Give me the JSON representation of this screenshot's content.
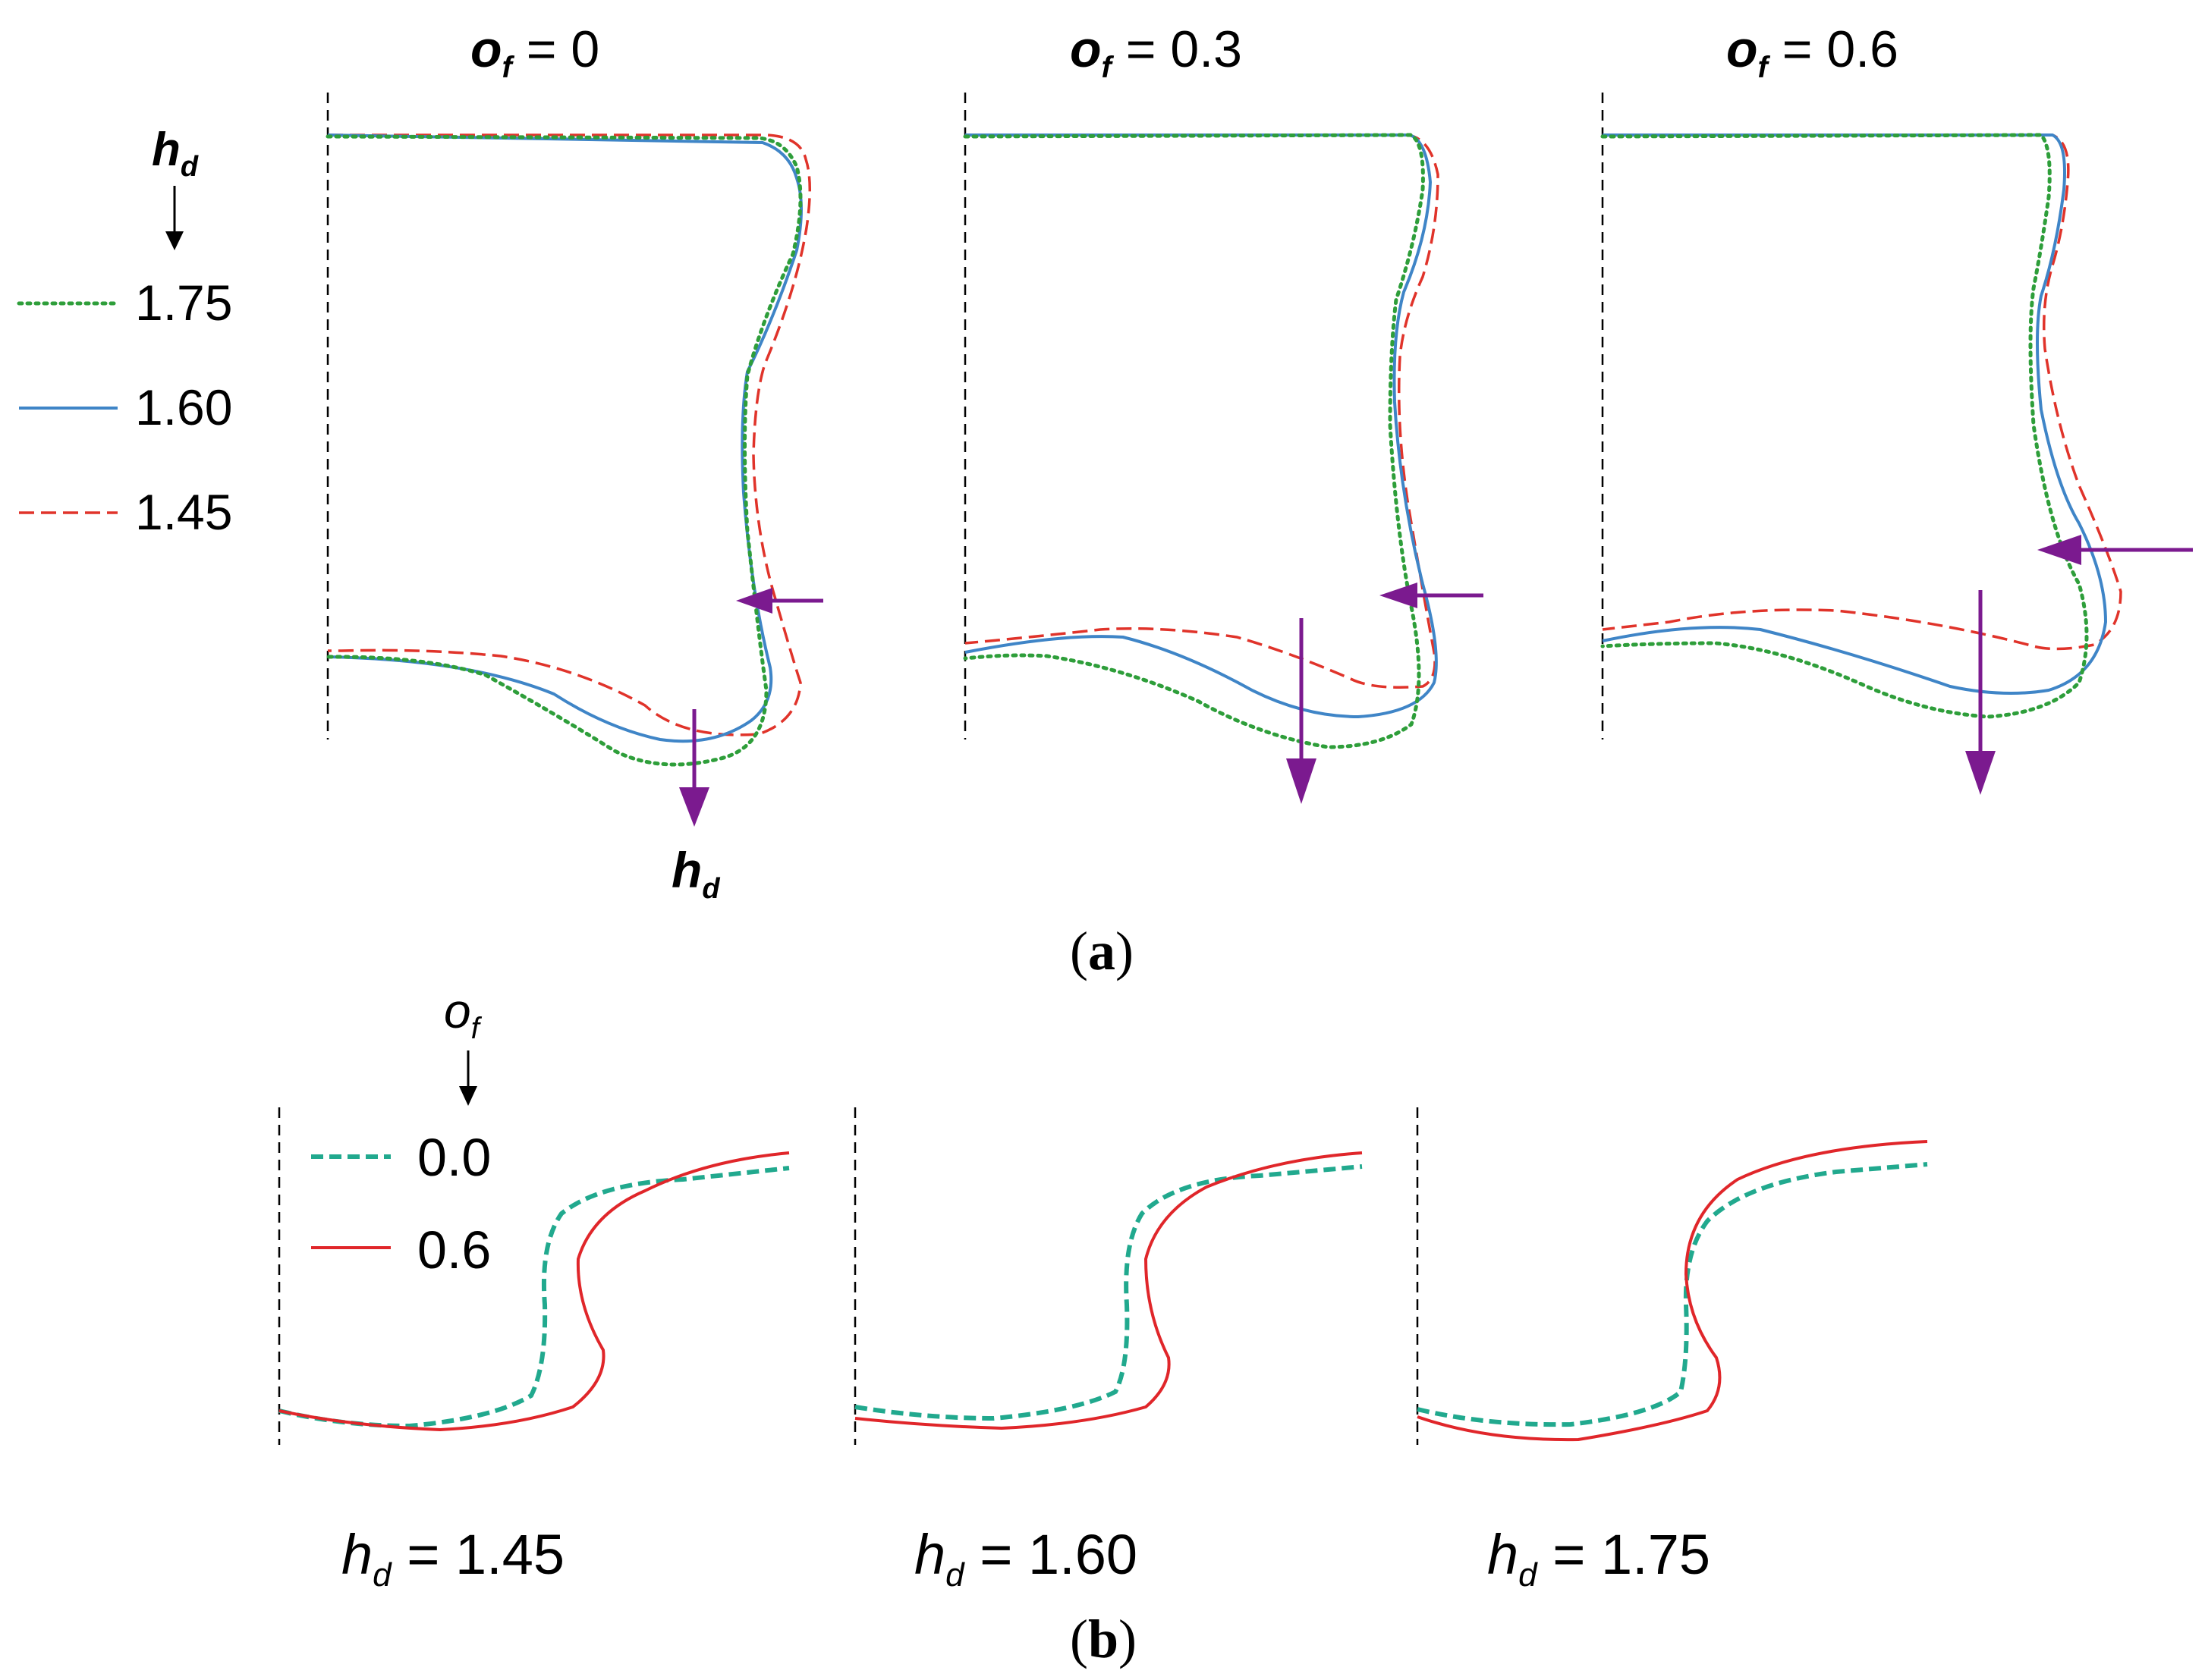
{
  "panel_a": {
    "caption_letter": "a",
    "parameter_symbol": "o",
    "parameter_subscript": "f",
    "columns": [
      {
        "value": "0"
      },
      {
        "value": "0.3"
      },
      {
        "value": "0.6"
      }
    ],
    "legend": {
      "symbol": "h",
      "subscript": "d",
      "entries": [
        {
          "label": "1.75",
          "style": "green-dotted"
        },
        {
          "label": "1.60",
          "style": "blue-solid"
        },
        {
          "label": "1.45",
          "style": "red-dashed"
        }
      ]
    },
    "arrow_label_symbol": "h",
    "arrow_label_subscript": "d"
  },
  "panel_b": {
    "caption_letter": "b",
    "legend": {
      "symbol": "o",
      "subscript": "f",
      "entries": [
        {
          "label": "0.0",
          "style": "teal-dashed"
        },
        {
          "label": "0.6",
          "style": "red-solid"
        }
      ]
    },
    "columns": [
      {
        "symbol": "h",
        "subscript": "d",
        "value": "1.45"
      },
      {
        "symbol": "h",
        "subscript": "d",
        "value": "1.60"
      },
      {
        "symbol": "h",
        "subscript": "d",
        "value": "1.75"
      }
    ]
  },
  "colors": {
    "green": "#2e9e3a",
    "blue": "#3f85c7",
    "red": "#e0332a",
    "teal": "#21a98e",
    "arrow_purple": "#7b1a8f"
  }
}
